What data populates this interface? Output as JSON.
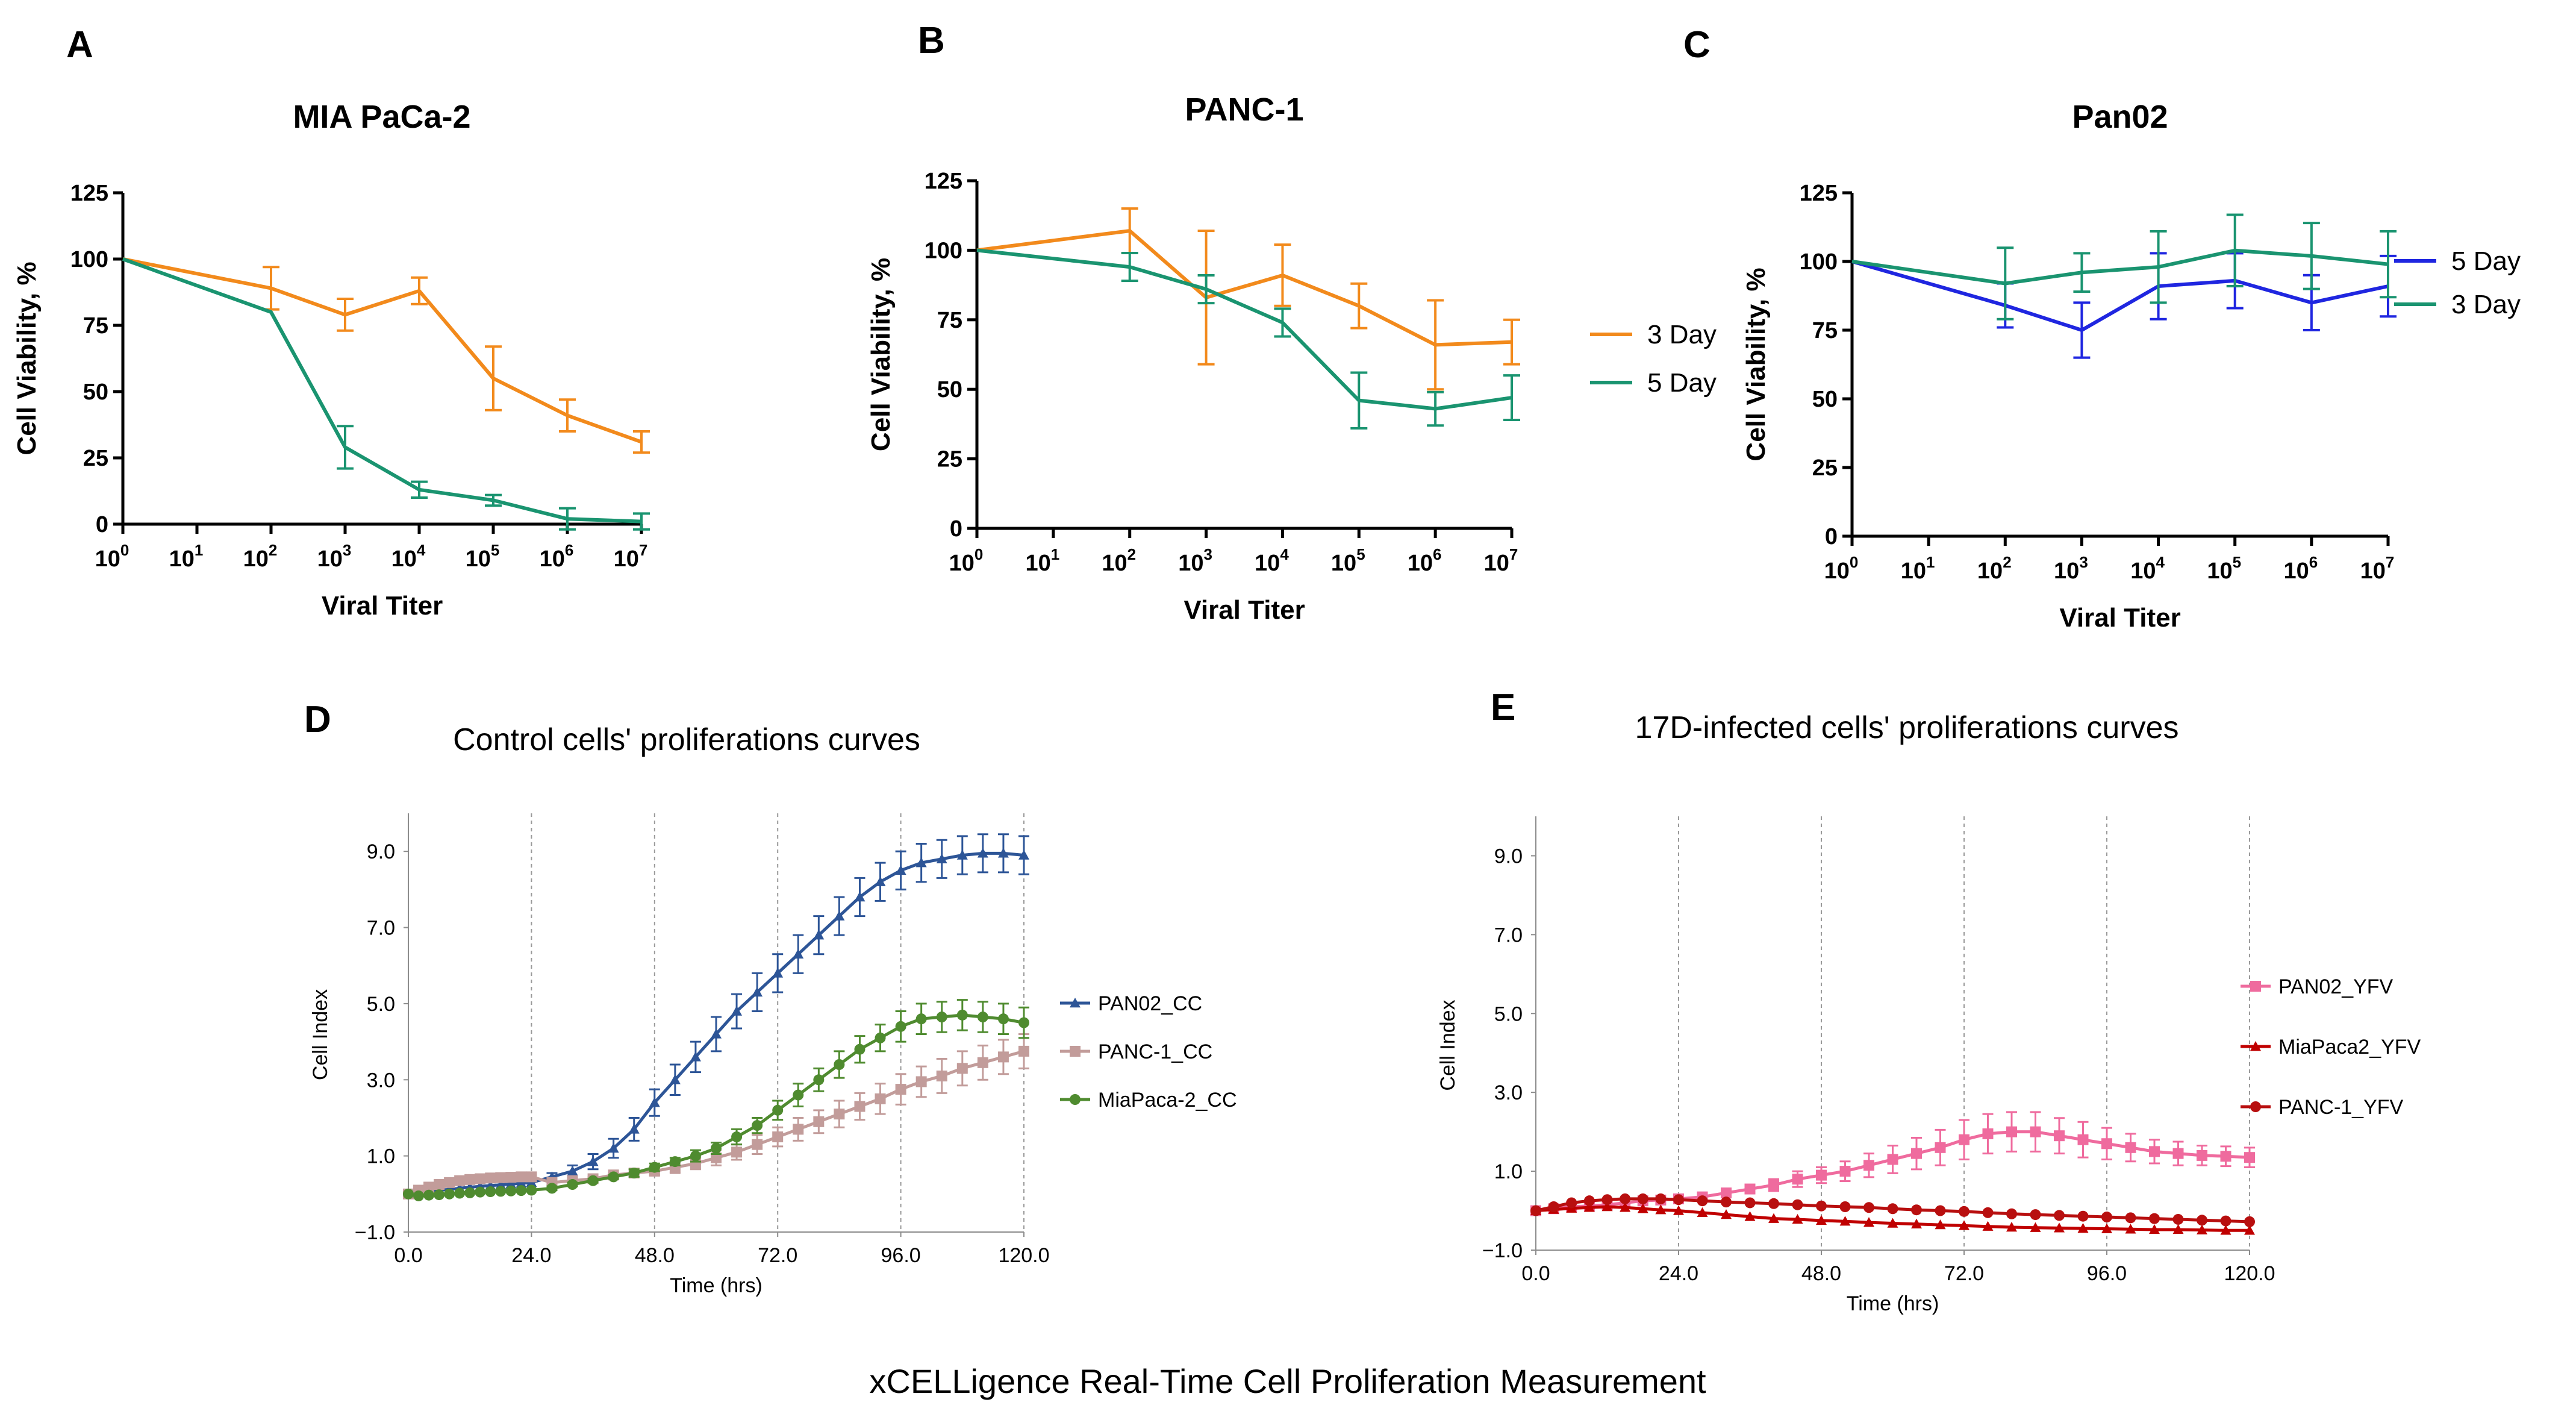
{
  "caption": "xCELLigence Real-Time Cell Proliferation Measurement",
  "chart_data": [
    {
      "panel": "A",
      "type": "line",
      "title": "MIA PaCa-2",
      "xlabel": "Viral Titer",
      "ylabel": "Cell Viability, %",
      "xscale": "log10",
      "x_exponents": [
        0,
        1,
        2,
        3,
        4,
        5,
        6,
        7
      ],
      "x_tick_base": "10",
      "x_tick_exps": [
        "0",
        "1",
        "2",
        "3",
        "4",
        "5",
        "6",
        "7"
      ],
      "ylim": [
        0,
        125
      ],
      "yticks": [
        0,
        25,
        50,
        75,
        100,
        125
      ],
      "ytick_labels": [
        "0",
        "25",
        "50",
        "75",
        "100",
        "125"
      ],
      "series": [
        {
          "name": "3 Day",
          "color": "#f28a1c",
          "x": [
            0,
            2,
            3,
            4,
            5,
            6,
            7
          ],
          "y": [
            100,
            89,
            79,
            88,
            55,
            41,
            31
          ],
          "err": [
            0,
            8,
            6,
            5,
            12,
            6,
            4
          ]
        },
        {
          "name": "5 Day",
          "color": "#1a9470",
          "x": [
            0,
            2,
            3,
            4,
            5,
            6,
            7
          ],
          "y": [
            100,
            80,
            29,
            13,
            9,
            2,
            1
          ],
          "err": [
            0,
            0,
            8,
            3,
            2,
            4,
            3
          ]
        }
      ]
    },
    {
      "panel": "B",
      "type": "line",
      "title": "PANC-1",
      "xlabel": "Viral Titer",
      "ylabel": "Cell Viability, %",
      "xscale": "log10",
      "x_exponents": [
        0,
        1,
        2,
        3,
        4,
        5,
        6,
        7
      ],
      "x_tick_base": "10",
      "x_tick_exps": [
        "0",
        "1",
        "2",
        "3",
        "4",
        "5",
        "6",
        "7"
      ],
      "ylim": [
        0,
        125
      ],
      "yticks": [
        0,
        25,
        50,
        75,
        100,
        125
      ],
      "ytick_labels": [
        "0",
        "25",
        "50",
        "75",
        "100",
        "125"
      ],
      "legend": [
        "3 Day",
        "5 Day"
      ],
      "series": [
        {
          "name": "3 Day",
          "color": "#f28a1c",
          "x": [
            0,
            2,
            3,
            4,
            5,
            6,
            7
          ],
          "y": [
            100,
            107,
            83,
            91,
            80,
            66,
            67
          ],
          "err": [
            0,
            8,
            24,
            11,
            8,
            16,
            8
          ]
        },
        {
          "name": "5 Day",
          "color": "#1a9470",
          "x": [
            0,
            2,
            3,
            4,
            5,
            6,
            7
          ],
          "y": [
            100,
            94,
            86,
            74,
            46,
            43,
            47
          ],
          "err": [
            0,
            5,
            5,
            5,
            10,
            6,
            8
          ]
        }
      ]
    },
    {
      "panel": "C",
      "type": "line",
      "title": "Pan02",
      "xlabel": "Viral Titer",
      "ylabel": "Cell Viability, %",
      "xscale": "log10",
      "x_exponents": [
        0,
        1,
        2,
        3,
        4,
        5,
        6,
        7
      ],
      "x_tick_base": "10",
      "x_tick_exps": [
        "0",
        "1",
        "2",
        "3",
        "4",
        "5",
        "6",
        "7"
      ],
      "ylim": [
        0,
        125
      ],
      "yticks": [
        0,
        25,
        50,
        75,
        100,
        125
      ],
      "ytick_labels": [
        "0",
        "25",
        "50",
        "75",
        "100",
        "125"
      ],
      "legend": [
        "5 Day",
        "3 Day"
      ],
      "series": [
        {
          "name": "5 Day",
          "color": "#1f26e0",
          "x": [
            0,
            2,
            3,
            4,
            5,
            6,
            7
          ],
          "y": [
            100,
            84,
            75,
            91,
            93,
            85,
            91
          ],
          "err": [
            0,
            8,
            10,
            12,
            10,
            10,
            11
          ]
        },
        {
          "name": "3 Day",
          "color": "#1a9470",
          "x": [
            0,
            2,
            3,
            4,
            5,
            6,
            7
          ],
          "y": [
            100,
            92,
            96,
            98,
            104,
            102,
            99
          ],
          "err": [
            0,
            13,
            7,
            13,
            13,
            12,
            12
          ]
        }
      ]
    },
    {
      "panel": "D",
      "type": "line",
      "title": "Control cells' proliferations curves",
      "xlabel": "Time (hrs)",
      "ylabel": "Cell Index",
      "xlim": [
        0,
        120
      ],
      "xticks": [
        0,
        24,
        48,
        72,
        96,
        120
      ],
      "xtick_labels": [
        "0.0",
        "24.0",
        "48.0",
        "72.0",
        "96.0",
        "120.0"
      ],
      "ylim": [
        -1,
        10
      ],
      "yticks": [
        -1,
        1,
        3,
        5,
        7,
        9
      ],
      "ytick_labels": [
        "−1.0",
        "1.0",
        "3.0",
        "5.0",
        "7.0",
        "9.0"
      ],
      "grid": "vertical dashed",
      "series": [
        {
          "name": "PAN02_CC",
          "color": "#2d5597",
          "marker": "triangle",
          "x": [
            0,
            2,
            4,
            6,
            8,
            10,
            12,
            14,
            16,
            18,
            20,
            22,
            24,
            28,
            32,
            36,
            40,
            44,
            48,
            52,
            56,
            60,
            64,
            68,
            72,
            76,
            80,
            84,
            88,
            92,
            96,
            100,
            104,
            108,
            112,
            116,
            120
          ],
          "y": [
            0,
            0.05,
            0.08,
            0.1,
            0.12,
            0.15,
            0.18,
            0.2,
            0.22,
            0.24,
            0.26,
            0.28,
            0.3,
            0.45,
            0.6,
            0.85,
            1.2,
            1.7,
            2.4,
            3.0,
            3.6,
            4.2,
            4.8,
            5.3,
            5.8,
            6.3,
            6.8,
            7.3,
            7.8,
            8.2,
            8.5,
            8.7,
            8.8,
            8.9,
            8.95,
            8.95,
            8.9
          ],
          "err": [
            0,
            0,
            0,
            0,
            0,
            0,
            0,
            0,
            0,
            0,
            0,
            0,
            0,
            0.1,
            0.15,
            0.2,
            0.25,
            0.3,
            0.35,
            0.4,
            0.4,
            0.45,
            0.45,
            0.5,
            0.5,
            0.5,
            0.5,
            0.5,
            0.5,
            0.5,
            0.5,
            0.5,
            0.5,
            0.5,
            0.5,
            0.5,
            0.5
          ]
        },
        {
          "name": "PANC-1_CC",
          "color": "#c29c9a",
          "marker": "square",
          "x": [
            0,
            2,
            4,
            6,
            8,
            10,
            12,
            14,
            16,
            18,
            20,
            22,
            24,
            28,
            32,
            36,
            40,
            44,
            48,
            52,
            56,
            60,
            64,
            68,
            72,
            76,
            80,
            84,
            88,
            92,
            96,
            100,
            104,
            108,
            112,
            116,
            120
          ],
          "y": [
            0,
            0.1,
            0.18,
            0.25,
            0.3,
            0.35,
            0.38,
            0.4,
            0.42,
            0.43,
            0.44,
            0.45,
            0.45,
            0.3,
            0.35,
            0.4,
            0.5,
            0.55,
            0.6,
            0.7,
            0.8,
            0.95,
            1.1,
            1.3,
            1.5,
            1.7,
            1.9,
            2.1,
            2.3,
            2.5,
            2.75,
            2.95,
            3.1,
            3.3,
            3.45,
            3.6,
            3.75
          ],
          "err": [
            0,
            0.05,
            0.05,
            0.05,
            0.05,
            0.05,
            0.05,
            0.05,
            0.05,
            0.05,
            0.05,
            0.05,
            0.05,
            0.05,
            0.05,
            0.05,
            0.05,
            0.1,
            0.1,
            0.15,
            0.15,
            0.2,
            0.2,
            0.25,
            0.25,
            0.3,
            0.3,
            0.35,
            0.35,
            0.4,
            0.4,
            0.4,
            0.45,
            0.45,
            0.45,
            0.45,
            0.45
          ]
        },
        {
          "name": "MiaPaca-2_CC",
          "color": "#4f8b2f",
          "marker": "circle",
          "x": [
            0,
            2,
            4,
            6,
            8,
            10,
            12,
            14,
            16,
            18,
            20,
            22,
            24,
            28,
            32,
            36,
            40,
            44,
            48,
            52,
            56,
            60,
            64,
            68,
            72,
            76,
            80,
            84,
            88,
            92,
            96,
            100,
            104,
            108,
            112,
            116,
            120
          ],
          "y": [
            0,
            -0.05,
            -0.03,
            -0.02,
            0,
            0.02,
            0.03,
            0.05,
            0.06,
            0.07,
            0.08,
            0.09,
            0.1,
            0.15,
            0.25,
            0.35,
            0.45,
            0.55,
            0.7,
            0.85,
            1.0,
            1.2,
            1.5,
            1.8,
            2.2,
            2.6,
            3.0,
            3.4,
            3.8,
            4.1,
            4.4,
            4.6,
            4.65,
            4.7,
            4.65,
            4.6,
            4.5
          ],
          "err": [
            0,
            0,
            0,
            0,
            0,
            0,
            0,
            0,
            0,
            0,
            0,
            0,
            0,
            0.05,
            0.05,
            0.05,
            0.05,
            0.1,
            0.1,
            0.1,
            0.15,
            0.15,
            0.2,
            0.2,
            0.25,
            0.3,
            0.3,
            0.35,
            0.35,
            0.35,
            0.4,
            0.4,
            0.4,
            0.4,
            0.4,
            0.4,
            0.4
          ]
        }
      ]
    },
    {
      "panel": "E",
      "type": "line",
      "title": "17D-infected cells' proliferations curves",
      "xlabel": "Time (hrs)",
      "ylabel": "Cell Index",
      "xlim": [
        0,
        120
      ],
      "xticks": [
        0,
        24,
        48,
        72,
        96,
        120
      ],
      "xtick_labels": [
        "0.0",
        "24.0",
        "48.0",
        "72.0",
        "96.0",
        "120.0"
      ],
      "ylim": [
        -1,
        10
      ],
      "yticks": [
        -1,
        1,
        3,
        5,
        7,
        9
      ],
      "ytick_labels": [
        "−1.0",
        "1.0",
        "3.0",
        "5.0",
        "7.0",
        "9.0"
      ],
      "grid": "vertical dashed",
      "series": [
        {
          "name": "PAN02_YFV",
          "color": "#ef6b9e",
          "marker": "square",
          "x": [
            0,
            3,
            6,
            9,
            12,
            15,
            18,
            21,
            24,
            28,
            32,
            36,
            40,
            44,
            48,
            52,
            56,
            60,
            64,
            68,
            72,
            76,
            80,
            84,
            88,
            92,
            96,
            100,
            104,
            108,
            112,
            116,
            120
          ],
          "y": [
            0,
            0.05,
            0.1,
            0.12,
            0.15,
            0.2,
            0.25,
            0.27,
            0.3,
            0.35,
            0.45,
            0.55,
            0.65,
            0.8,
            0.9,
            1.0,
            1.15,
            1.3,
            1.45,
            1.6,
            1.8,
            1.95,
            2.0,
            2.0,
            1.9,
            1.8,
            1.7,
            1.6,
            1.5,
            1.45,
            1.4,
            1.38,
            1.35
          ],
          "err": [
            0,
            0,
            0,
            0,
            0,
            0,
            0,
            0,
            0,
            0.05,
            0.1,
            0.1,
            0.15,
            0.2,
            0.2,
            0.25,
            0.3,
            0.35,
            0.4,
            0.45,
            0.5,
            0.5,
            0.5,
            0.5,
            0.45,
            0.45,
            0.4,
            0.35,
            0.3,
            0.3,
            0.25,
            0.25,
            0.25
          ]
        },
        {
          "name": "MiaPaca2_YFV",
          "color": "#c00000",
          "marker": "triangle",
          "x": [
            0,
            3,
            6,
            9,
            12,
            15,
            18,
            21,
            24,
            28,
            32,
            36,
            40,
            44,
            48,
            52,
            56,
            60,
            64,
            68,
            72,
            76,
            80,
            84,
            88,
            92,
            96,
            100,
            104,
            108,
            112,
            116,
            120
          ],
          "y": [
            0,
            0.03,
            0.06,
            0.08,
            0.1,
            0.08,
            0.05,
            0.02,
            0,
            -0.05,
            -0.1,
            -0.15,
            -0.2,
            -0.22,
            -0.25,
            -0.27,
            -0.3,
            -0.32,
            -0.34,
            -0.36,
            -0.38,
            -0.4,
            -0.42,
            -0.43,
            -0.44,
            -0.45,
            -0.46,
            -0.47,
            -0.48,
            -0.48,
            -0.49,
            -0.5,
            -0.5
          ],
          "err": [
            0,
            0,
            0,
            0,
            0,
            0,
            0,
            0,
            0,
            0,
            0,
            0,
            0,
            0,
            0,
            0,
            0,
            0,
            0,
            0,
            0,
            0,
            0,
            0,
            0,
            0,
            0,
            0,
            0,
            0,
            0,
            0,
            0
          ]
        },
        {
          "name": "PANC-1_YFV",
          "color": "#b80f0f",
          "marker": "circle",
          "x": [
            0,
            3,
            6,
            9,
            12,
            15,
            18,
            21,
            24,
            28,
            32,
            36,
            40,
            44,
            48,
            52,
            56,
            60,
            64,
            68,
            72,
            76,
            80,
            84,
            88,
            92,
            96,
            100,
            104,
            108,
            112,
            116,
            120
          ],
          "y": [
            0,
            0.1,
            0.2,
            0.25,
            0.28,
            0.3,
            0.3,
            0.3,
            0.28,
            0.25,
            0.22,
            0.2,
            0.18,
            0.15,
            0.12,
            0.1,
            0.08,
            0.05,
            0.02,
            0,
            -0.02,
            -0.05,
            -0.08,
            -0.1,
            -0.12,
            -0.14,
            -0.16,
            -0.18,
            -0.2,
            -0.22,
            -0.24,
            -0.26,
            -0.28
          ],
          "err": [
            0,
            0,
            0,
            0,
            0,
            0,
            0,
            0,
            0,
            0,
            0,
            0,
            0,
            0,
            0,
            0,
            0,
            0,
            0,
            0,
            0,
            0,
            0,
            0,
            0,
            0,
            0,
            0,
            0,
            0,
            0,
            0,
            0
          ]
        }
      ]
    }
  ]
}
